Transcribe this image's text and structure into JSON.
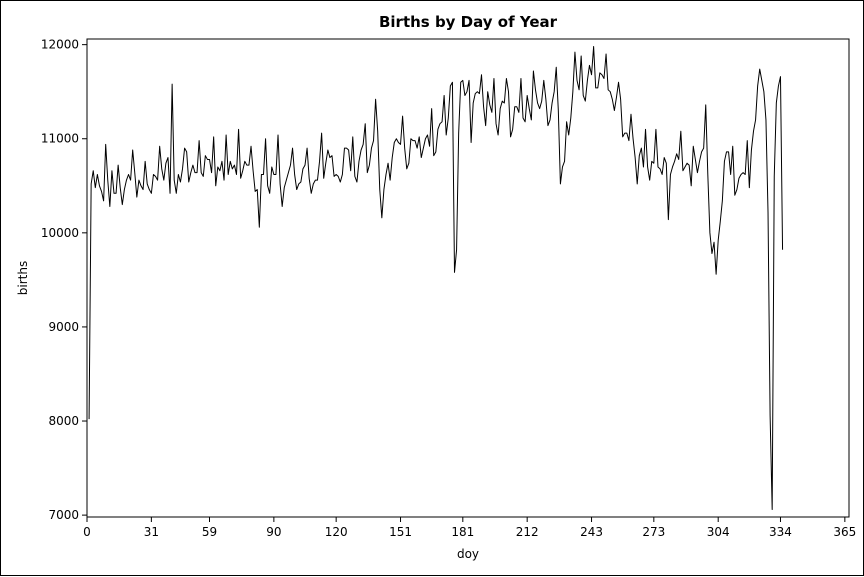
{
  "chart_data": {
    "type": "line",
    "title": "Births by Day of Year",
    "xlabel": "doy",
    "ylabel": "births",
    "xlim": [
      0,
      367
    ],
    "ylim": [
      6980,
      12060
    ],
    "grid": false,
    "legend": "none",
    "line_color": "#000000",
    "x_ticks": [
      0,
      31,
      59,
      90,
      120,
      151,
      181,
      212,
      243,
      273,
      304,
      334,
      365
    ],
    "y_ticks": [
      7000,
      8000,
      9000,
      10000,
      11000,
      12000
    ],
    "x_tick_labels": [
      "0",
      "31",
      "59",
      "90",
      "120",
      "151",
      "181",
      "212",
      "243",
      "273",
      "304",
      "334",
      "365"
    ],
    "y_tick_labels": [
      "7000",
      "8000",
      "9000",
      "10000",
      "11000",
      "12000"
    ],
    "series": [
      {
        "values": [
          8020,
          10520,
          10660,
          10480,
          10620,
          10500,
          10440,
          10340,
          10940,
          10560,
          10280,
          10660,
          10420,
          10420,
          10720,
          10480,
          10300,
          10460,
          10560,
          10620,
          10560,
          10880,
          10640,
          10380,
          10560,
          10500,
          10460,
          10760,
          10520,
          10460,
          10420,
          10620,
          10600,
          10560,
          10920,
          10680,
          10560,
          10740,
          10800,
          10420,
          11580,
          10560,
          10420,
          10620,
          10540,
          10680,
          10900,
          10860,
          10540,
          10640,
          10720,
          10640,
          10640,
          10980,
          10640,
          10600,
          10820,
          10780,
          10780,
          10640,
          11020,
          10500,
          10700,
          10660,
          10760,
          10560,
          11040,
          10620,
          10760,
          10680,
          10720,
          10620,
          11100,
          10580,
          10660,
          10760,
          10720,
          10720,
          10920,
          10660,
          10440,
          10460,
          10060,
          10620,
          10620,
          11000,
          10500,
          10420,
          10700,
          10620,
          10620,
          11040,
          10520,
          10280,
          10480,
          10560,
          10640,
          10720,
          10900,
          10620,
          10460,
          10520,
          10540,
          10680,
          10720,
          10900,
          10580,
          10420,
          10520,
          10560,
          10560,
          10760,
          11060,
          10580,
          10740,
          10880,
          10800,
          10820,
          10600,
          10620,
          10600,
          10540,
          10620,
          10900,
          10900,
          10880,
          10660,
          11020,
          10600,
          10540,
          10760,
          10880,
          10940,
          11160,
          10640,
          10720,
          10900,
          10980,
          11420,
          11080,
          10460,
          10160,
          10460,
          10620,
          10740,
          10560,
          10800,
          10960,
          11000,
          10960,
          10940,
          11240,
          10900,
          10680,
          10740,
          11000,
          10980,
          10980,
          10900,
          11020,
          10800,
          10900,
          11000,
          11040,
          10920,
          11320,
          10820,
          10860,
          11100,
          11160,
          11180,
          11460,
          11040,
          11220,
          11560,
          11600,
          9580,
          9820,
          11060,
          11600,
          11620,
          11460,
          11500,
          11620,
          10960,
          11380,
          11480,
          11500,
          11480,
          11680,
          11340,
          11140,
          11500,
          11360,
          11280,
          11640,
          11160,
          11040,
          11320,
          11400,
          11380,
          11640,
          11500,
          11020,
          11100,
          11340,
          11340,
          11280,
          11640,
          11220,
          11180,
          11460,
          11320,
          11200,
          11720,
          11520,
          11380,
          11320,
          11400,
          11620,
          11420,
          11140,
          11200,
          11380,
          11500,
          11760,
          11300,
          10520,
          10700,
          10760,
          11180,
          11040,
          11220,
          11500,
          11920,
          11620,
          11520,
          11880,
          11460,
          11400,
          11620,
          11780,
          11680,
          11980,
          11540,
          11540,
          11700,
          11680,
          11640,
          11900,
          11520,
          11500,
          11420,
          11300,
          11440,
          11600,
          11420,
          11020,
          11060,
          11060,
          10980,
          11260,
          11000,
          10800,
          10520,
          10820,
          10900,
          10700,
          11100,
          10700,
          10560,
          10760,
          10740,
          11100,
          10700,
          10680,
          10620,
          10800,
          10740,
          10140,
          10620,
          10700,
          10760,
          10840,
          10780,
          11080,
          10660,
          10700,
          10740,
          10720,
          10500,
          10920,
          10780,
          10640,
          10760,
          10860,
          10900,
          11360,
          10620,
          10000,
          9780,
          9900,
          9560,
          9920,
          10120,
          10340,
          10760,
          10860,
          10860,
          10620,
          10920,
          10400,
          10460,
          10580,
          10620,
          10640,
          10620,
          10980,
          10480,
          10880,
          11080,
          11200,
          11560,
          11740,
          11620,
          11500,
          11200,
          10220,
          8060,
          7060,
          10600,
          11380,
          11560,
          11660,
          9820
        ]
      }
    ]
  }
}
